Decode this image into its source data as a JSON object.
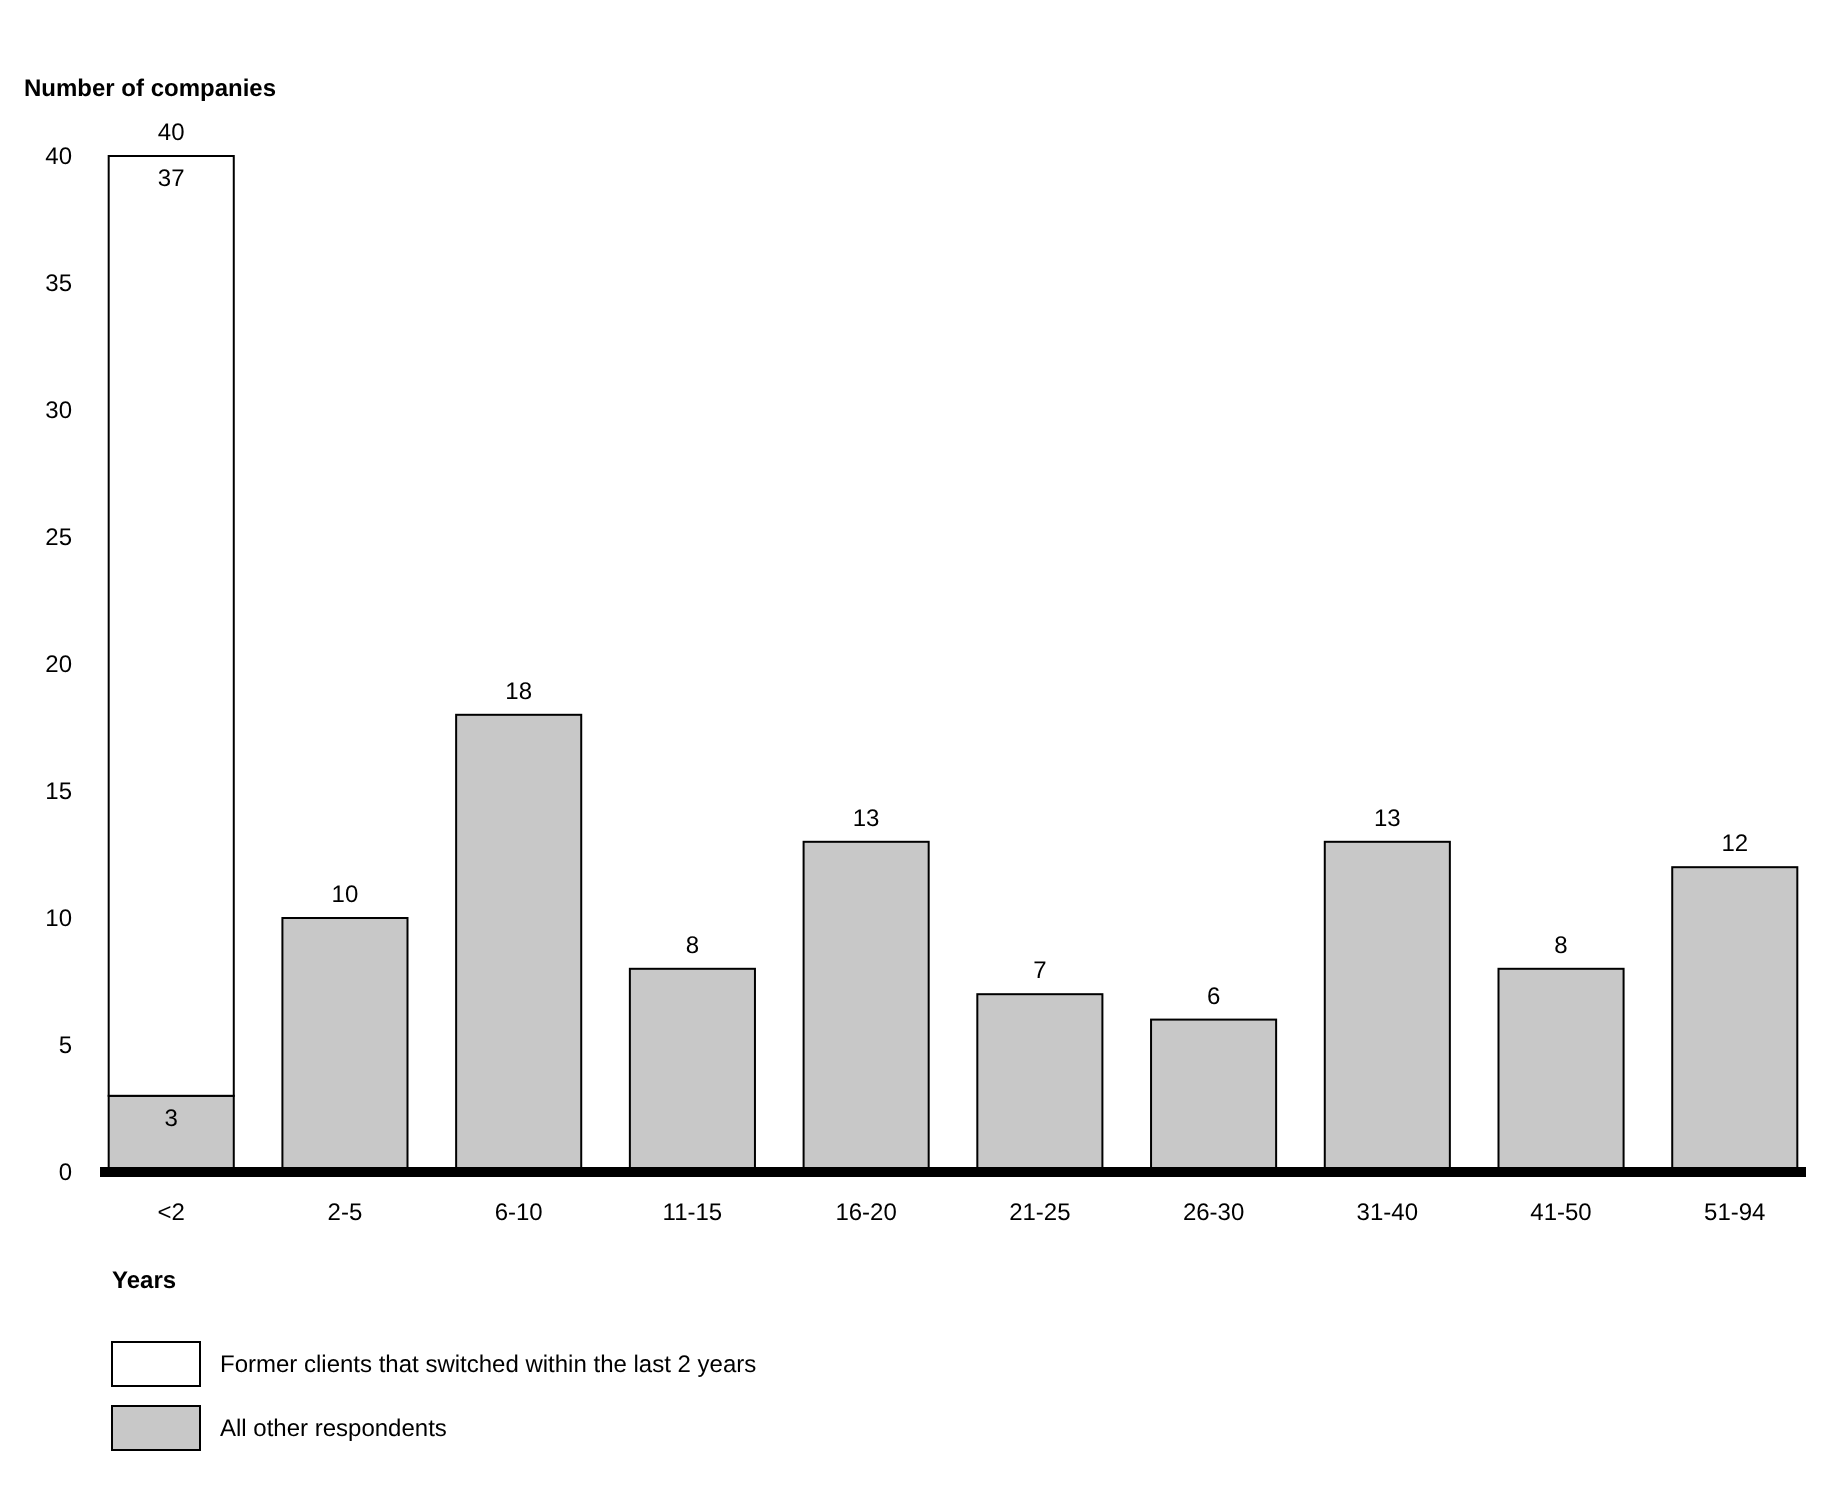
{
  "chart_data": {
    "type": "bar",
    "stacked": true,
    "ylabel": "Number of companies",
    "xlabel": "Years",
    "categories": [
      "<2",
      "2-5",
      "6-10",
      "11-15",
      "16-20",
      "21-25",
      "26-30",
      "31-40",
      "41-50",
      "51-94"
    ],
    "series": [
      {
        "name": "All other respondents",
        "color": "#c8c8c8",
        "values": [
          3,
          10,
          18,
          8,
          13,
          7,
          6,
          13,
          8,
          12
        ],
        "value_labels": [
          "3",
          "10",
          "18",
          "8",
          "13",
          "7",
          "6",
          "13",
          "8",
          "12"
        ]
      },
      {
        "name": "Former clients that switched within the last 2 years",
        "color": "#ffffff",
        "values": [
          37,
          null,
          null,
          null,
          null,
          null,
          null,
          null,
          null,
          null
        ],
        "value_labels": [
          "37",
          null,
          null,
          null,
          null,
          null,
          null,
          null,
          null,
          null
        ]
      }
    ],
    "totals": [
      "40",
      null,
      null,
      null,
      null,
      null,
      null,
      null,
      null,
      null
    ],
    "ylim": [
      0,
      40
    ],
    "yticks": [
      0,
      5,
      10,
      15,
      20,
      25,
      30,
      35,
      40
    ],
    "legend": "bottom",
    "grid": false
  }
}
